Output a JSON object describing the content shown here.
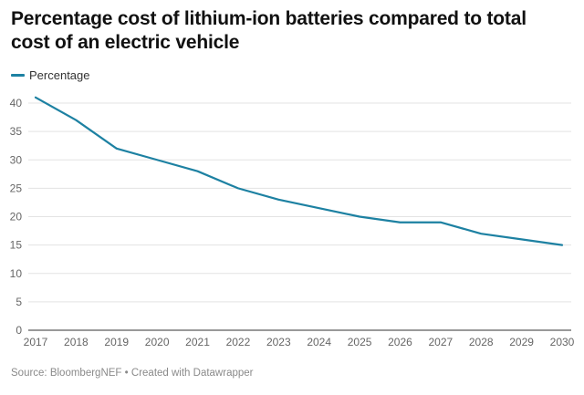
{
  "title": "Percentage cost of lithium-ion batteries compared to total cost of an electric vehicle",
  "legend": {
    "items": [
      {
        "label": "Percentage",
        "color": "#1d81a2"
      }
    ]
  },
  "footer": {
    "source": "Source: BloombergNEF",
    "separator": "•",
    "credit": "Created with Datawrapper"
  },
  "chart_data": {
    "type": "line",
    "title": "Percentage cost of lithium-ion batteries compared to total cost of an electric vehicle",
    "xlabel": "",
    "ylabel": "",
    "x": [
      2017,
      2018,
      2019,
      2020,
      2021,
      2022,
      2023,
      2024,
      2025,
      2026,
      2027,
      2028,
      2029,
      2030
    ],
    "series": [
      {
        "name": "Percentage",
        "color": "#1d81a2",
        "values": [
          41,
          37,
          32,
          30,
          28,
          25,
          23,
          21.5,
          20,
          19,
          19,
          17,
          16,
          15
        ]
      }
    ],
    "xlim": [
      2017,
      2030
    ],
    "ylim": [
      0,
      40
    ],
    "yticks": [
      0,
      5,
      10,
      15,
      20,
      25,
      30,
      35,
      40
    ],
    "xticks": [
      2017,
      2018,
      2019,
      2020,
      2021,
      2022,
      2023,
      2024,
      2025,
      2026,
      2027,
      2028,
      2029,
      2030
    ],
    "grid": true,
    "legend": "top-left"
  }
}
